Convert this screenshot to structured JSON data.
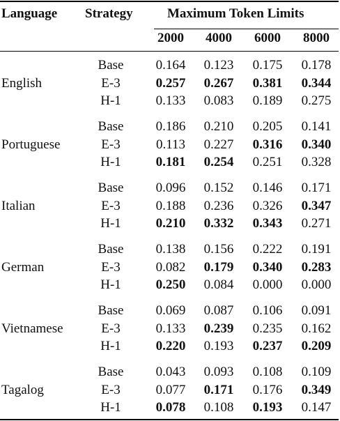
{
  "header": {
    "language": "Language",
    "strategy": "Strategy",
    "max_tokens": "Maximum Token Limits",
    "limits": [
      "2000",
      "4000",
      "6000",
      "8000"
    ]
  },
  "groups": [
    {
      "language": "English",
      "rows": [
        {
          "strategy": "Base",
          "values": [
            "0.164",
            "0.123",
            "0.175",
            "0.178"
          ],
          "bold": [
            false,
            false,
            false,
            false
          ]
        },
        {
          "strategy": "E-3",
          "values": [
            "0.257",
            "0.267",
            "0.381",
            "0.344"
          ],
          "bold": [
            true,
            true,
            true,
            true
          ]
        },
        {
          "strategy": "H-1",
          "values": [
            "0.133",
            "0.083",
            "0.189",
            "0.275"
          ],
          "bold": [
            false,
            false,
            false,
            false
          ]
        }
      ]
    },
    {
      "language": "Portuguese",
      "rows": [
        {
          "strategy": "Base",
          "values": [
            "0.186",
            "0.210",
            "0.205",
            "0.141"
          ],
          "bold": [
            false,
            false,
            false,
            false
          ]
        },
        {
          "strategy": "E-3",
          "values": [
            "0.113",
            "0.227",
            "0.316",
            "0.340"
          ],
          "bold": [
            false,
            false,
            true,
            true
          ]
        },
        {
          "strategy": "H-1",
          "values": [
            "0.181",
            "0.254",
            "0.251",
            "0.328"
          ],
          "bold": [
            true,
            true,
            false,
            false
          ]
        }
      ]
    },
    {
      "language": "Italian",
      "rows": [
        {
          "strategy": "Base",
          "values": [
            "0.096",
            "0.152",
            "0.146",
            "0.171"
          ],
          "bold": [
            false,
            false,
            false,
            false
          ]
        },
        {
          "strategy": "E-3",
          "values": [
            "0.188",
            "0.236",
            "0.326",
            "0.347"
          ],
          "bold": [
            false,
            false,
            false,
            true
          ]
        },
        {
          "strategy": "H-1",
          "values": [
            "0.210",
            "0.332",
            "0.343",
            "0.271"
          ],
          "bold": [
            true,
            true,
            true,
            false
          ]
        }
      ]
    },
    {
      "language": "German",
      "rows": [
        {
          "strategy": "Base",
          "values": [
            "0.138",
            "0.156",
            "0.222",
            "0.191"
          ],
          "bold": [
            false,
            false,
            false,
            false
          ]
        },
        {
          "strategy": "E-3",
          "values": [
            "0.082",
            "0.179",
            "0.340",
            "0.283"
          ],
          "bold": [
            false,
            true,
            true,
            true
          ]
        },
        {
          "strategy": "H-1",
          "values": [
            "0.250",
            "0.084",
            "0.000",
            "0.000"
          ],
          "bold": [
            true,
            false,
            false,
            false
          ]
        }
      ]
    },
    {
      "language": "Vietnamese",
      "rows": [
        {
          "strategy": "Base",
          "values": [
            "0.069",
            "0.087",
            "0.106",
            "0.091"
          ],
          "bold": [
            false,
            false,
            false,
            false
          ]
        },
        {
          "strategy": "E-3",
          "values": [
            "0.133",
            "0.239",
            "0.235",
            "0.162"
          ],
          "bold": [
            false,
            true,
            false,
            false
          ]
        },
        {
          "strategy": "H-1",
          "values": [
            "0.220",
            "0.193",
            "0.237",
            "0.209"
          ],
          "bold": [
            true,
            false,
            true,
            true
          ]
        }
      ]
    },
    {
      "language": "Tagalog",
      "rows": [
        {
          "strategy": "Base",
          "values": [
            "0.043",
            "0.093",
            "0.108",
            "0.109"
          ],
          "bold": [
            false,
            false,
            false,
            false
          ]
        },
        {
          "strategy": "E-3",
          "values": [
            "0.077",
            "0.171",
            "0.176",
            "0.349"
          ],
          "bold": [
            false,
            true,
            false,
            true
          ]
        },
        {
          "strategy": "H-1",
          "values": [
            "0.078",
            "0.108",
            "0.193",
            "0.147"
          ],
          "bold": [
            true,
            false,
            true,
            false
          ]
        }
      ]
    }
  ]
}
